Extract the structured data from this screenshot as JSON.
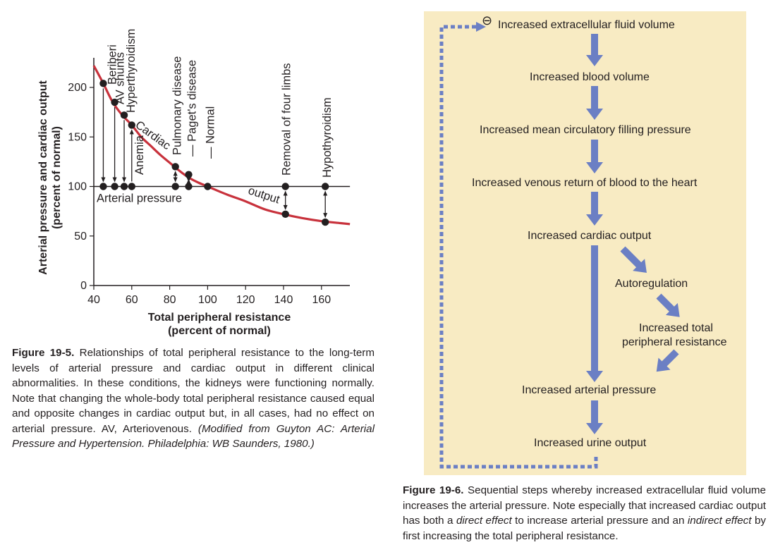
{
  "figure_19_5": {
    "caption": {
      "label": "Figure 19-5.",
      "text": " Relationships of total peripheral resistance to the long-term levels of arterial pressure and cardiac output in different clinical abnormalities. In these conditions, the kidneys were functioning normally. Note that changing the whole-body total peripheral resistance caused equal and opposite changes in cardiac output but, in all cases, had no effect on arterial pressure. AV, Arteriovenous. ",
      "citation": "(Modified from Guyton AC: Arterial Pressure and Hypertension. Philadelphia: WB Saunders, 1980.)"
    }
  },
  "chart_data": {
    "type": "line",
    "xlabel_line1": "Total peripheral resistance",
    "xlabel_line2": "(percent of normal)",
    "ylabel_line1": "Arterial pressure  and cardiac output",
    "ylabel_line2": "(percent of normal)",
    "xlim": [
      40,
      175
    ],
    "ylim": [
      0,
      220
    ],
    "x_ticks": [
      40,
      60,
      80,
      100,
      120,
      140,
      160
    ],
    "y_ticks": [
      0,
      50,
      100,
      150,
      200
    ],
    "grid": false,
    "series": [
      {
        "name": "Arterial pressure",
        "type": "line",
        "x": [
          40,
          175
        ],
        "y": [
          100,
          100
        ]
      },
      {
        "name": "Cardiac output",
        "type": "curve",
        "x": [
          40,
          45,
          50,
          55,
          60,
          65,
          70,
          75,
          80,
          85,
          90,
          95,
          100,
          110,
          120,
          130,
          140,
          150,
          160,
          170,
          175
        ],
        "y": [
          222,
          204,
          185,
          172,
          162,
          150,
          141,
          132,
          124,
          116,
          109,
          104,
          100,
          92,
          85,
          77,
          72,
          68,
          65,
          63,
          62
        ]
      }
    ],
    "curve_labels": [
      "Cardiac",
      "output"
    ],
    "conditions": [
      {
        "label": "Beriberi",
        "x": 45,
        "co": 204,
        "arrow": "down"
      },
      {
        "label": "AV shunts",
        "x": 51,
        "co": 185,
        "arrow": "down"
      },
      {
        "label": "Hyperthyroidism",
        "x": 56,
        "co": 172,
        "arrow": "down"
      },
      {
        "label": "Anemia",
        "x": 60,
        "co": 162,
        "arrow": "up"
      },
      {
        "label": "Pulmonary disease",
        "x": 83,
        "co": 120,
        "arrow": "both"
      },
      {
        "label": "Paget's disease",
        "x": 90,
        "co": 112,
        "arrow": "both"
      },
      {
        "label": "Normal",
        "x": 100,
        "co": 100,
        "arrow": "none"
      },
      {
        "label": "Removal of four limbs",
        "x": 141,
        "co": 72,
        "arrow": "both"
      },
      {
        "label": "Hypothyroidism",
        "x": 162,
        "co": 64,
        "arrow": "both"
      }
    ],
    "colors": {
      "curve": "#c8323c",
      "axis": "#231f20"
    }
  },
  "figure_19_6": {
    "caption": {
      "label": "Figure 19-6.",
      "text1": " Sequential steps whereby increased extracellular fluid volume increases the arterial pressure. Note especially that increased cardiac output has both a ",
      "em1": "direct effect",
      "text2": " to increase arterial pressure and an ",
      "em2": "indirect effect",
      "text3": " by first increasing the total peripheral resistance."
    },
    "feedback_symbol": "⊖",
    "steps": {
      "s1": "Increased extracellular fluid volume",
      "s2": "Increased blood volume",
      "s3": "Increased mean circulatory filling pressure",
      "s4": "Increased venous return of blood to the heart",
      "s5": "Increased cardiac output",
      "s6": "Autoregulation",
      "s7_line1": "Increased total",
      "s7_line2": "peripheral resistance",
      "s8": "Increased arterial pressure",
      "s9": "Increased urine output"
    },
    "colors": {
      "panel": "#f8ebc3",
      "arrow": "#6b7fc4"
    }
  }
}
